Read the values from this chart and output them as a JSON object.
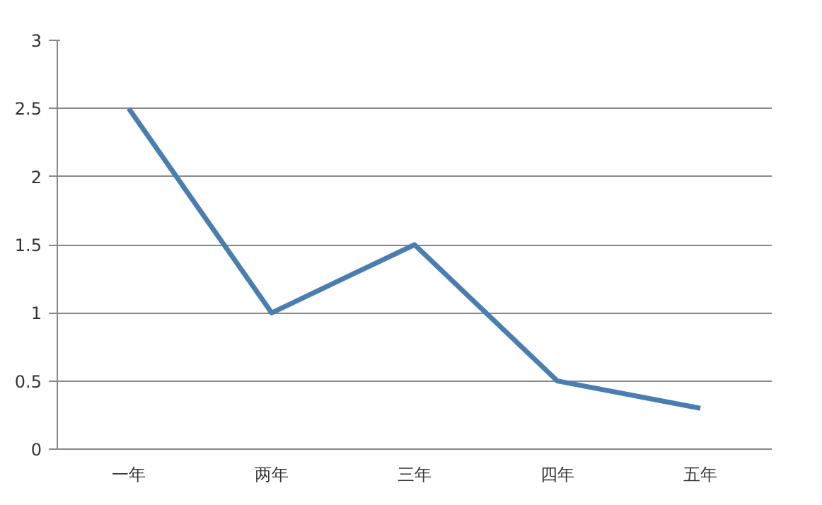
{
  "chart_data": {
    "type": "line",
    "categories": [
      "一年",
      "两年",
      "三年",
      "四年",
      "五年"
    ],
    "series": [
      {
        "color": "#4a7eb0",
        "values": [
          2.5,
          1.0,
          1.5,
          0.5,
          0.3
        ]
      }
    ],
    "ylim": [
      0,
      3
    ],
    "yticks": [
      0,
      0.5,
      1,
      1.5,
      2,
      2.5,
      3
    ],
    "grid": "y",
    "marker": "none",
    "line_style": "solid"
  }
}
